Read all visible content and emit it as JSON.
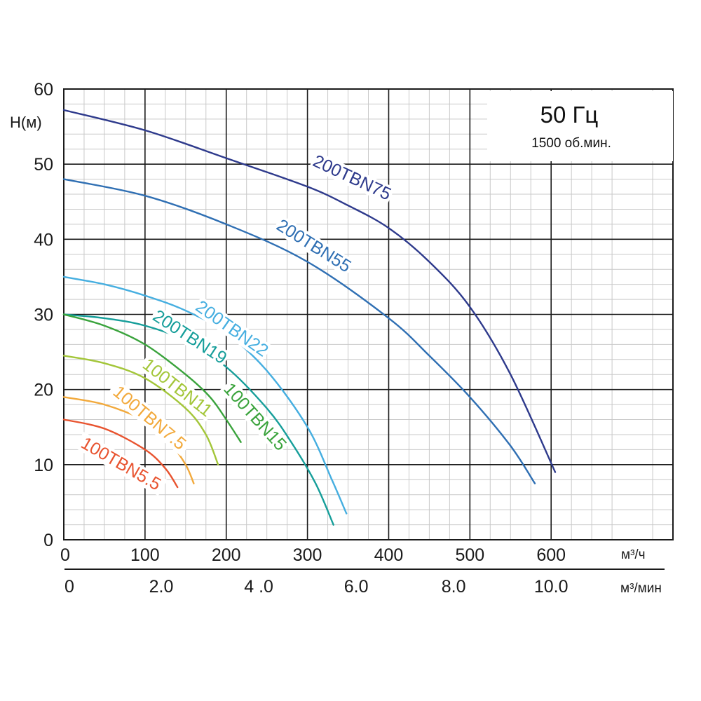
{
  "chart_data": {
    "type": "line",
    "ylabel": "H(м)",
    "xlabel": "м³/ч",
    "x2label": "м³/мин",
    "xlim": [
      0,
      750
    ],
    "ylim": [
      0,
      60
    ],
    "x_ticks": [
      0,
      100,
      200,
      300,
      400,
      500,
      600
    ],
    "x_tick_labels": [
      "0",
      "100",
      "200",
      "300",
      "400",
      "500",
      "600"
    ],
    "x2_ticks": [
      0,
      120,
      240,
      360,
      480,
      600
    ],
    "x2_tick_labels": [
      "0",
      "2.0",
      "4 .0",
      "6.0",
      "8.0",
      "10.0"
    ],
    "y_ticks": [
      0,
      10,
      20,
      30,
      40,
      50,
      60
    ],
    "y_tick_labels": [
      "0",
      "10",
      "20",
      "30",
      "40",
      "50",
      "60"
    ],
    "grid": true,
    "info_box": {
      "frequency": "50 Гц",
      "speed": "1500 об.мин."
    },
    "series": [
      {
        "name": "200TBN75",
        "color": "#2e3a8c",
        "x": [
          0,
          100,
          200,
          300,
          350,
          400,
          450,
          500,
          550,
          605
        ],
        "y": [
          57.2,
          54.5,
          50.8,
          47,
          44.5,
          41.5,
          37,
          31,
          22,
          9
        ]
      },
      {
        "name": "200TBN55",
        "color": "#2f6fb3",
        "x": [
          0,
          100,
          200,
          300,
          400,
          450,
          500,
          550,
          580
        ],
        "y": [
          48,
          45.8,
          42,
          37,
          29.5,
          24.5,
          19,
          12.5,
          7.5
        ]
      },
      {
        "name": "200TBN22",
        "color": "#45aee0",
        "x": [
          0,
          50,
          100,
          150,
          200,
          250,
          300,
          330,
          348
        ],
        "y": [
          35,
          34,
          32.5,
          30.5,
          27.5,
          22.5,
          15,
          8,
          3.5
        ]
      },
      {
        "name": "200TBN19",
        "color": "#169e9a",
        "x": [
          0,
          50,
          100,
          150,
          200,
          250,
          280,
          310,
          332
        ],
        "y": [
          30,
          29.5,
          28.5,
          26.5,
          23,
          17.5,
          13,
          7.5,
          2
        ]
      },
      {
        "name": "100TBN15",
        "color": "#3aa33c",
        "x": [
          0,
          50,
          100,
          150,
          180,
          200,
          218
        ],
        "y": [
          30,
          28.5,
          26,
          22,
          19,
          16,
          13
        ]
      },
      {
        "name": "100TBN11",
        "color": "#a3c639",
        "x": [
          0,
          50,
          100,
          150,
          175,
          190
        ],
        "y": [
          24.5,
          23.5,
          21.5,
          17.5,
          14,
          10
        ]
      },
      {
        "name": "100TBN7.5",
        "color": "#f2a93b",
        "x": [
          0,
          50,
          100,
          130,
          150,
          160
        ],
        "y": [
          19,
          18,
          15.8,
          13,
          10,
          7.5
        ]
      },
      {
        "name": "100TBN5.5",
        "color": "#e8532f",
        "x": [
          0,
          50,
          100,
          125,
          140
        ],
        "y": [
          16,
          14.8,
          12,
          9.5,
          7
        ]
      }
    ]
  }
}
